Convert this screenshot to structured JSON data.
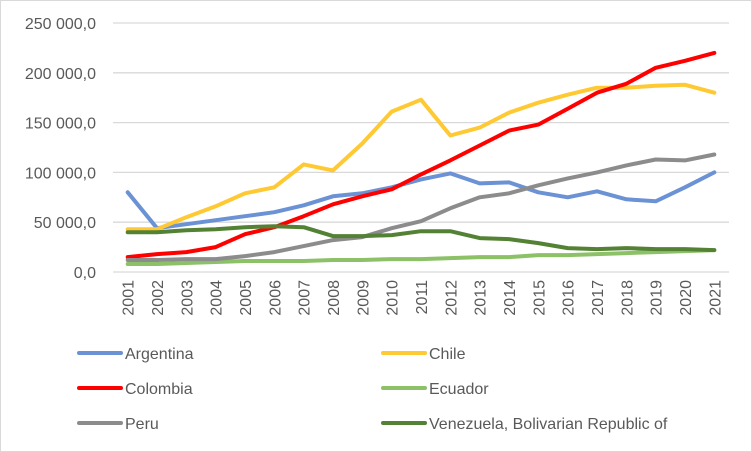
{
  "chart_data": {
    "type": "line",
    "title": "",
    "xlabel": "",
    "ylabel": "",
    "ylim": [
      0,
      250000
    ],
    "yticks": [
      0,
      50000,
      100000,
      150000,
      200000,
      250000
    ],
    "ytick_labels": [
      "0,0",
      "50 000,0",
      "100 000,0",
      "150 000,0",
      "200 000,0",
      "250 000,0"
    ],
    "grid": true,
    "legend_position": "bottom",
    "x": [
      "2001",
      "2002",
      "2003",
      "2004",
      "2005",
      "2006",
      "2007",
      "2008",
      "2009",
      "2010",
      "2011",
      "2012",
      "2013",
      "2014",
      "2015",
      "2016",
      "2017",
      "2018",
      "2019",
      "2020",
      "2021"
    ],
    "series": [
      {
        "name": "Argentina",
        "color": "#6a92d4",
        "values": [
          80000,
          44000,
          48000,
          52000,
          56000,
          60000,
          67000,
          76000,
          79000,
          85000,
          93000,
          99000,
          89000,
          90000,
          80000,
          75000,
          81000,
          73000,
          71000,
          85000,
          100000
        ]
      },
      {
        "name": "Chile",
        "color": "#ffc933",
        "values": [
          43000,
          43000,
          55000,
          66000,
          79000,
          85000,
          108000,
          102000,
          129000,
          161000,
          173000,
          137000,
          145000,
          160000,
          170000,
          178000,
          185000,
          185000,
          187000,
          188000,
          180000
        ]
      },
      {
        "name": "Colombia",
        "color": "#ff0000",
        "values": [
          15000,
          18000,
          20000,
          25000,
          38000,
          45000,
          56000,
          68000,
          76000,
          83000,
          98000,
          112000,
          127000,
          142000,
          148000,
          164000,
          180000,
          189000,
          205000,
          212000,
          220000
        ]
      },
      {
        "name": "Ecuador",
        "color": "#8cc168",
        "values": [
          8000,
          8000,
          9000,
          10000,
          11000,
          11000,
          11000,
          12000,
          12000,
          13000,
          13000,
          14000,
          15000,
          15000,
          17000,
          17000,
          18000,
          19000,
          20000,
          21000,
          22000
        ]
      },
      {
        "name": "Peru",
        "color": "#8c8c8c",
        "values": [
          12000,
          12000,
          13000,
          13000,
          16000,
          20000,
          26000,
          32000,
          35000,
          44000,
          51000,
          64000,
          75000,
          79000,
          87000,
          94000,
          100000,
          107000,
          113000,
          112000,
          118000
        ]
      },
      {
        "name": "Venezuela, Bolivarian Republic of",
        "color": "#548235",
        "values": [
          40000,
          40000,
          42000,
          43000,
          45000,
          46000,
          45000,
          36000,
          36000,
          37000,
          41000,
          41000,
          34000,
          33000,
          29000,
          24000,
          23000,
          24000,
          23000,
          23000,
          22000
        ]
      }
    ]
  }
}
